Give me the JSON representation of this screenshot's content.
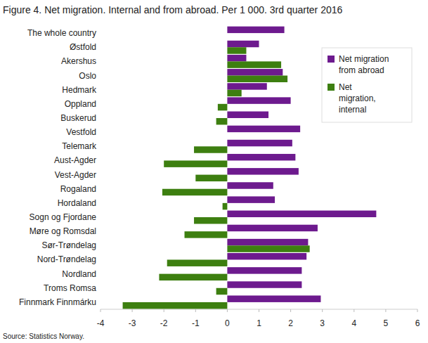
{
  "chart_data": {
    "type": "bar",
    "orientation": "horizontal",
    "title": "Figure 4. Net migration. Internal and from abroad. Per 1 000. 3rd quarter 2016",
    "source": "Source: Statistics Norway.",
    "categories": [
      "The whole country",
      "Østfold",
      "Akershus",
      "Oslo",
      "Hedmark",
      "Oppland",
      "Buskerud",
      "Vestfold",
      "Telemark",
      "Aust-Agder",
      "Vest-Agder",
      "Rogaland",
      "Hordaland",
      "Sogn og Fjordane",
      "Møre og Romsdal",
      "Sør-Trøndelag",
      "Nord-Trøndelag",
      "Nordland",
      "Troms Romsa",
      "Finnmark Finnmárku"
    ],
    "series": [
      {
        "name": "Net migration from abroad",
        "color": "#6d1a8e",
        "values": [
          1.8,
          1.0,
          0.6,
          1.75,
          1.25,
          2.0,
          1.3,
          2.3,
          2.05,
          2.15,
          2.25,
          1.45,
          1.5,
          4.7,
          2.85,
          2.55,
          2.5,
          2.35,
          2.35,
          2.95
        ]
      },
      {
        "name": "Net migration, internal",
        "color": "#3d7f10",
        "values": [
          null,
          0.6,
          1.7,
          1.9,
          0.45,
          -0.3,
          -0.35,
          0,
          -1.05,
          -2.0,
          -1.0,
          -2.05,
          -0.15,
          -1.05,
          -1.35,
          2.6,
          -1.9,
          -2.15,
          -0.35,
          -3.3
        ]
      }
    ],
    "xlim": [
      -4,
      6
    ],
    "xticks": [
      -4,
      -3,
      -2,
      -1,
      0,
      1,
      2,
      3,
      4,
      5,
      6
    ],
    "grid": false,
    "legend": "top-right"
  }
}
